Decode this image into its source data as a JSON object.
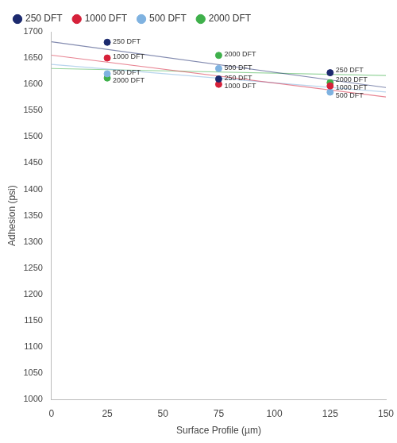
{
  "chart_data": {
    "type": "scatter",
    "x_label": "Surface Profile (µm)",
    "y_label": "Adhesion (psi)",
    "x": [
      25,
      75,
      125
    ],
    "series": [
      {
        "name": "250 DFT",
        "color": "#1c2a6e",
        "values": [
          1680,
          1610,
          1622
        ]
      },
      {
        "name": "1000 DFT",
        "color": "#d6213a",
        "values": [
          1650,
          1600,
          1597
        ]
      },
      {
        "name": "500 DFT",
        "color": "#7fb2e0",
        "values": [
          1620,
          1630,
          1585
        ]
      },
      {
        "name": "2000 DFT",
        "color": "#3fb04b",
        "values": [
          1612,
          1655,
          1603
        ]
      }
    ],
    "xlim": [
      0,
      150
    ],
    "xticks": [
      0,
      25,
      50,
      75,
      100,
      125,
      150
    ],
    "ylim": [
      1000,
      1700
    ],
    "yticks": [
      1000,
      1050,
      1100,
      1150,
      1200,
      1250,
      1300,
      1350,
      1400,
      1450,
      1500,
      1550,
      1600,
      1650,
      1700
    ],
    "grid": false,
    "legend": "top-left",
    "marker": "circle"
  }
}
